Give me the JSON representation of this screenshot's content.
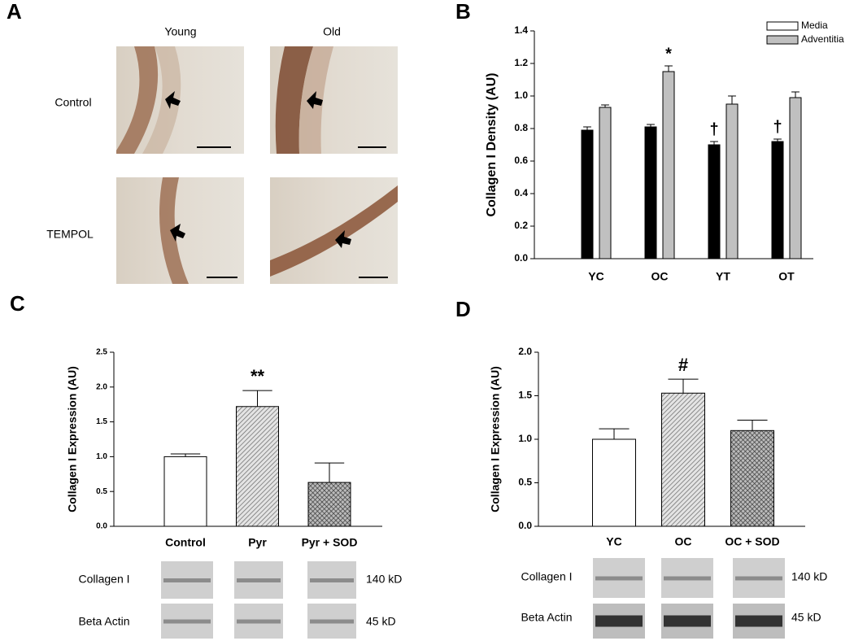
{
  "panel_a": {
    "panel": "A",
    "columns": [
      "Young",
      "Old"
    ],
    "rows": [
      "Control",
      "TEMPOL"
    ]
  },
  "chart_data": [
    {
      "type": "bar",
      "panel": "B",
      "ylabel": "Collagen I Density (AU)",
      "categories": [
        "YC",
        "OC",
        "YT",
        "OT"
      ],
      "series": [
        {
          "name": "Media",
          "color": "#000000",
          "values": [
            0.79,
            0.81,
            0.7,
            0.72
          ],
          "errors": [
            0.02,
            0.015,
            0.02,
            0.015
          ]
        },
        {
          "name": "Adventitia",
          "color": "#c0c0c0",
          "values": [
            0.93,
            1.15,
            0.95,
            0.99
          ],
          "errors": [
            0.015,
            0.035,
            0.05,
            0.035
          ]
        }
      ],
      "ylim": [
        0,
        1.4
      ],
      "yticks": [
        {
          "value": 0,
          "label": "0.0"
        },
        0.2,
        0.4,
        0.6,
        0.8,
        {
          "value": 1,
          "label": "1.0"
        },
        1.2,
        1.4
      ],
      "annotations": [
        "*",
        "†",
        "†"
      ],
      "legend": "upper right"
    },
    {
      "type": "bar",
      "panel": "C",
      "ylabel": "Collagen I Expression (AU)",
      "categories": [
        "Control",
        "Pyr",
        "Pyr + SOD"
      ],
      "values": [
        1.0,
        1.72,
        0.63
      ],
      "errors": [
        0.04,
        0.23,
        0.28
      ],
      "patterns": [
        "solid",
        "hatch",
        "crosshatch"
      ],
      "ylim": [
        0,
        2.5
      ],
      "yticks": [
        {
          "value": 0,
          "label": "0.0"
        },
        0.5,
        {
          "value": 1,
          "label": "1.0"
        },
        1.5,
        {
          "value": 2,
          "label": "2.0"
        },
        2.5
      ],
      "annotations": [
        "**"
      ],
      "blot": {
        "rows": [
          "Collagen I",
          "Beta Actin"
        ],
        "sizes": [
          "140 kD",
          "45 kD"
        ]
      }
    },
    {
      "type": "bar",
      "panel": "D",
      "ylabel": "Collagen I Expression (AU)",
      "categories": [
        "YC",
        "OC",
        "OC + SOD"
      ],
      "values": [
        1.0,
        1.53,
        1.1
      ],
      "errors": [
        0.12,
        0.16,
        0.12
      ],
      "patterns": [
        "solid",
        "hatch",
        "crosshatch"
      ],
      "ylim": [
        0,
        2.0
      ],
      "yticks": [
        {
          "value": 0,
          "label": "0.0"
        },
        0.5,
        {
          "value": 1,
          "label": "1.0"
        },
        1.5,
        {
          "value": 2,
          "label": "2.0"
        }
      ],
      "annotations": [
        "#"
      ],
      "blot": {
        "rows": [
          "Collagen I",
          "Beta Actin"
        ],
        "sizes": [
          "140 kD",
          "45 kD"
        ]
      }
    }
  ]
}
